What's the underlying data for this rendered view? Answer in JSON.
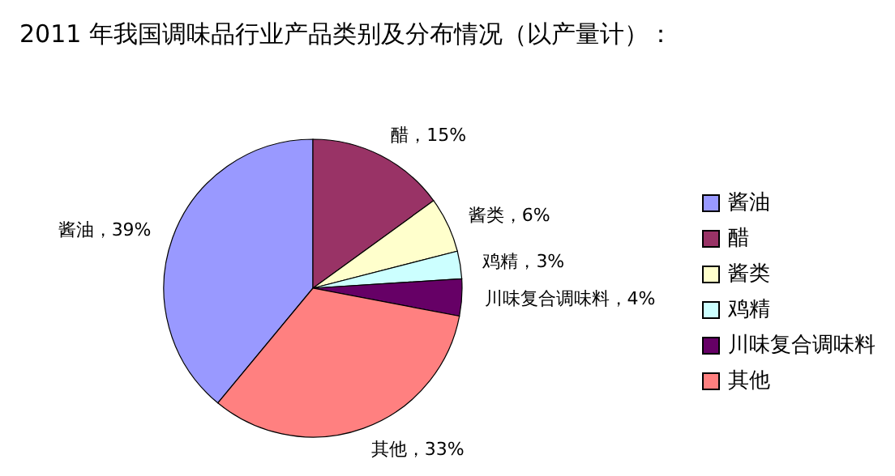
{
  "chart_data": {
    "type": "pie",
    "title": "2011 年我国调味品行业产品类别及分布情况（以产量计）：",
    "categories": [
      "酱油",
      "醋",
      "酱类",
      "鸡精",
      "川味复合调味料",
      "其他"
    ],
    "values": [
      39,
      15,
      6,
      3,
      4,
      33
    ],
    "colors": [
      "#9999ff",
      "#993366",
      "#ffffcc",
      "#ccffff",
      "#660066",
      "#ff8080"
    ],
    "value_labels": [
      "酱油，39%",
      "醋，15%",
      "酱类，6%",
      "鸡精，3%",
      "川味复合调味料，4%",
      "其他，33%"
    ],
    "legend": "right"
  }
}
